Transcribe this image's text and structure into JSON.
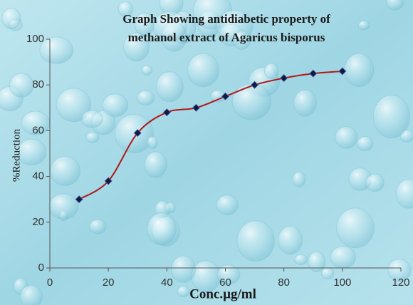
{
  "chart_data": {
    "type": "line",
    "title": [
      "Graph Showing antidiabetic property of",
      "methanol extract of Agaricus bisporus"
    ],
    "x_label": "Conc.µg/ml",
    "y_label": "%Reduction",
    "x": [
      10,
      20,
      30,
      40,
      50,
      60,
      70,
      80,
      90,
      100
    ],
    "series": [
      {
        "color": "#b01818",
        "marker_color": "#0d1a4a",
        "values": [
          30,
          38,
          59,
          68,
          70,
          75,
          80,
          83,
          85,
          86
        ]
      }
    ],
    "xlim": [
      0,
      120
    ],
    "xticks": [
      0,
      20,
      40,
      60,
      80,
      100,
      120
    ],
    "ylim": [
      0,
      100
    ],
    "yticks": [
      0,
      20,
      40,
      60,
      80,
      100
    ],
    "smooth": true
  }
}
